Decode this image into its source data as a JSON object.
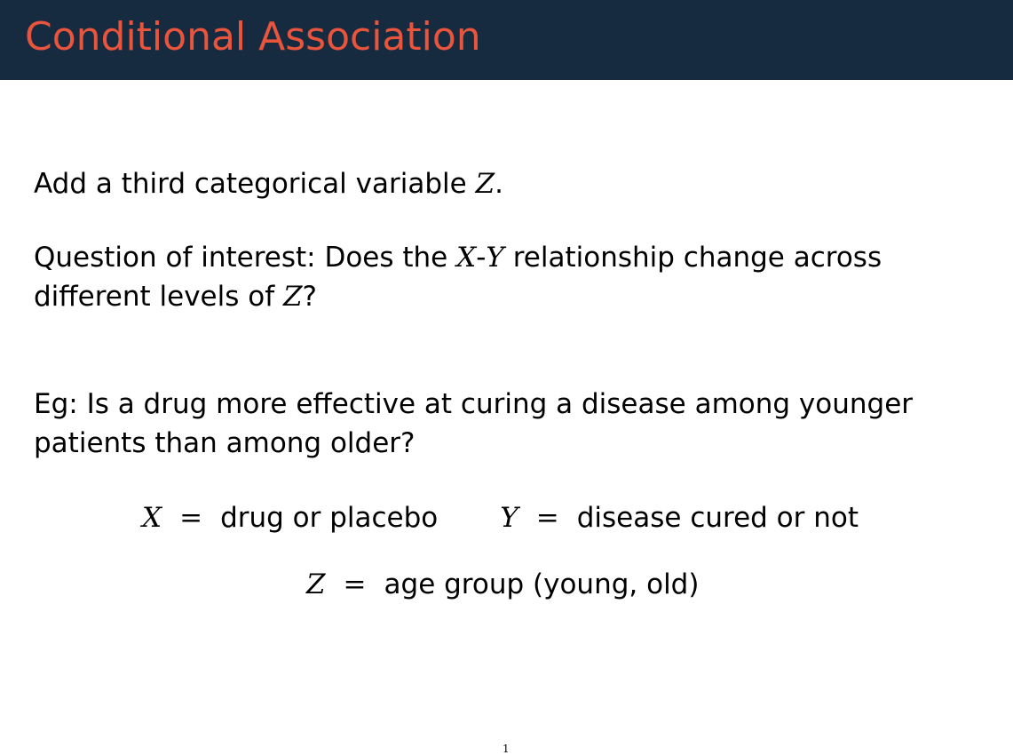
{
  "slide": {
    "title": "Conditional Association",
    "title_color": "#e8543c",
    "header_bg": "#172b40",
    "page_number": "1"
  },
  "p1": {
    "text_a": "Add a third categorical variable ",
    "var_z": "Z",
    "text_b": "."
  },
  "p2": {
    "text_a": "Question of interest: Does the ",
    "var_x": "X",
    "dash": "-",
    "var_y": "Y",
    "text_b": " relationship change across",
    "line2_a": "different levels of ",
    "var_z": "Z",
    "line2_b": "?"
  },
  "p3": {
    "line1": "Eg: Is a drug more effective at curing a disease among younger",
    "line2": "patients than among older?"
  },
  "definitions": {
    "x_var": "X",
    "x_desc": "drug or placebo",
    "y_var": "Y",
    "y_desc": "disease cured or not",
    "z_var": "Z",
    "z_desc": "age group (young, old)",
    "equals": "="
  }
}
